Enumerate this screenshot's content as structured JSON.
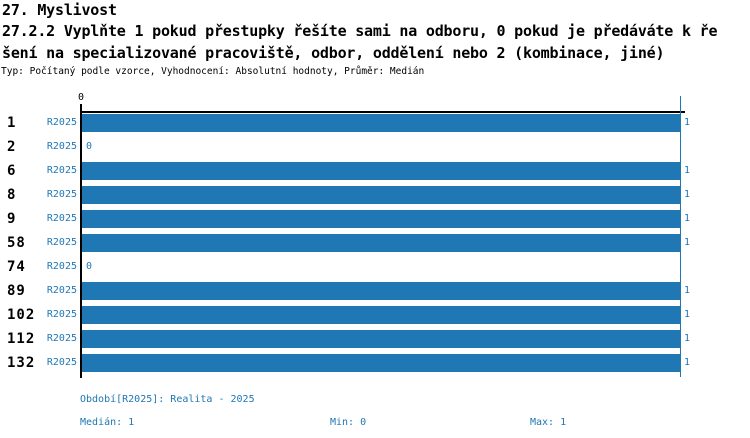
{
  "header": {
    "title": "27. Myslivost",
    "question_line1": "27.2.2 Vyplňte 1 pokud přestupky řešíte sami na odboru, 0 pokud je předáváte k ře",
    "question_line2": "šení na specializované pracoviště, odbor, oddělení nebo 2 (kombinace, jiné)",
    "meta": "Typ: Počítaný podle vzorce, Vyhodnocení: Absolutní hodnoty, Průměr: Medián"
  },
  "chart_data": {
    "type": "bar",
    "orientation": "horizontal",
    "title": "27.2.2 Vyplňte 1 pokud přestupky řešíte sami na odboru, 0 pokud je předáváte k řešení na specializované pracoviště, odbor, oddělení nebo 2 (kombinace, jiné)",
    "categories": [
      "1",
      "2",
      "6",
      "8",
      "9",
      "58",
      "74",
      "89",
      "102",
      "112",
      "132"
    ],
    "series_label": "R2025",
    "values": [
      1,
      0,
      1,
      1,
      1,
      1,
      0,
      1,
      1,
      1,
      1
    ],
    "xlim": [
      0,
      1
    ],
    "x_tick_labels": [
      "0"
    ],
    "grid": "max-value reference line only",
    "legend_position": "none",
    "bar_color": "#1f77b4"
  },
  "footer": {
    "period": "Období[R2025]: Realita - 2025",
    "median": "Medián: 1",
    "min": "Min: 0",
    "max": "Max: 1"
  },
  "colors": {
    "bar": "#1f77b4",
    "blue_text": "#1f77b4",
    "axis": "#000000",
    "background": "#ffffff"
  }
}
